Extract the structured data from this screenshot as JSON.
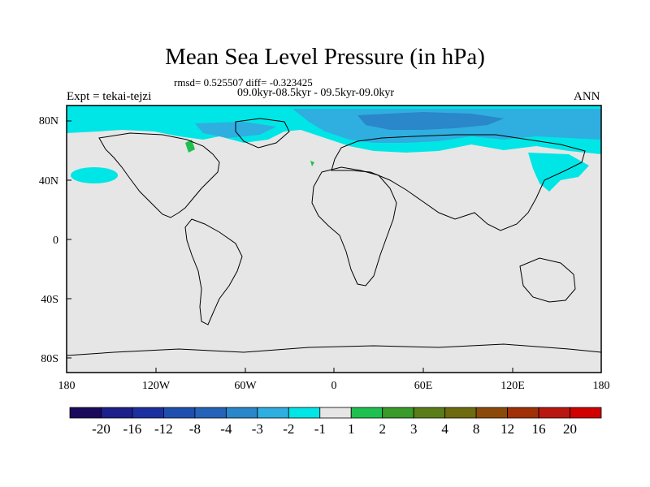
{
  "title": "Mean Sea Level Pressure (in hPa)",
  "stats_line": "rmsd= 0.525507 diff= -0.323425",
  "period_line": "09.0kyr-08.5kyr - 09.5kyr-09.0kyr",
  "experiment_label": "Expt = tekai-tejzi",
  "season_label": "ANN",
  "lat_ticks": [
    "80N",
    "40N",
    "0",
    "40S",
    "80S"
  ],
  "lon_ticks": [
    "180",
    "120W",
    "60W",
    "0",
    "60E",
    "120E",
    "180"
  ],
  "colorbar": {
    "labels": [
      "-20",
      "-16",
      "-12",
      "-8",
      "-4",
      "-3",
      "-2",
      "-1",
      "1",
      "2",
      "3",
      "4",
      "8",
      "12",
      "16",
      "20"
    ],
    "colors": [
      "#1a0a5c",
      "#1d1f8a",
      "#1c2fa0",
      "#1f4fae",
      "#2563b8",
      "#2a87c9",
      "#2faee0",
      "#00e6e6",
      "#e6e6e6",
      "#1fc050",
      "#3a9a2a",
      "#5a7d1a",
      "#6e6a10",
      "#8c4a0a",
      "#a03008",
      "#b81810",
      "#d00000"
    ]
  },
  "colors": {
    "land_ocean_background": "#e6e6e6",
    "anomaly_light_blue": "#00e6e6",
    "anomaly_mid_blue": "#2faee0",
    "anomaly_dark_blue": "#2a87c9",
    "anomaly_green": "#1fc050"
  }
}
